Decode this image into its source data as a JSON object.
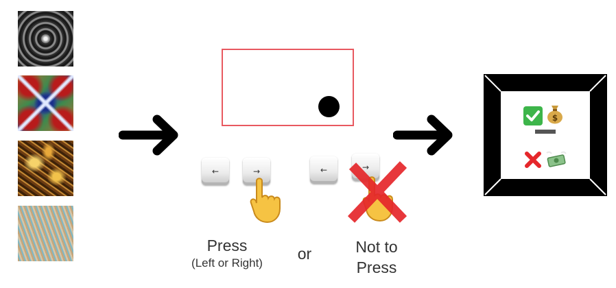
{
  "stimuli": {
    "icons": [
      "tunnel-fractal-image",
      "kaleidoscope-fractal-image",
      "gold-fractal-image",
      "spiral-fractal-image"
    ]
  },
  "keys": {
    "left_glyph": "←",
    "right_glyph": "→"
  },
  "captions": {
    "press": "Press",
    "press_sub": "(Left or Right)",
    "or": "or",
    "not_line1": "Not to",
    "not_line2": "Press"
  },
  "outcome": {
    "check_emoji": "✅",
    "money_bag_emoji": "💰",
    "dash": "—",
    "cross_emoji": "❌",
    "flying_money_emoji": "💸"
  },
  "colors": {
    "frame_red": "#e8585f",
    "cross_red": "#e5272b",
    "check_green": "#3db54a",
    "hand_yellow": "#f6c343"
  }
}
